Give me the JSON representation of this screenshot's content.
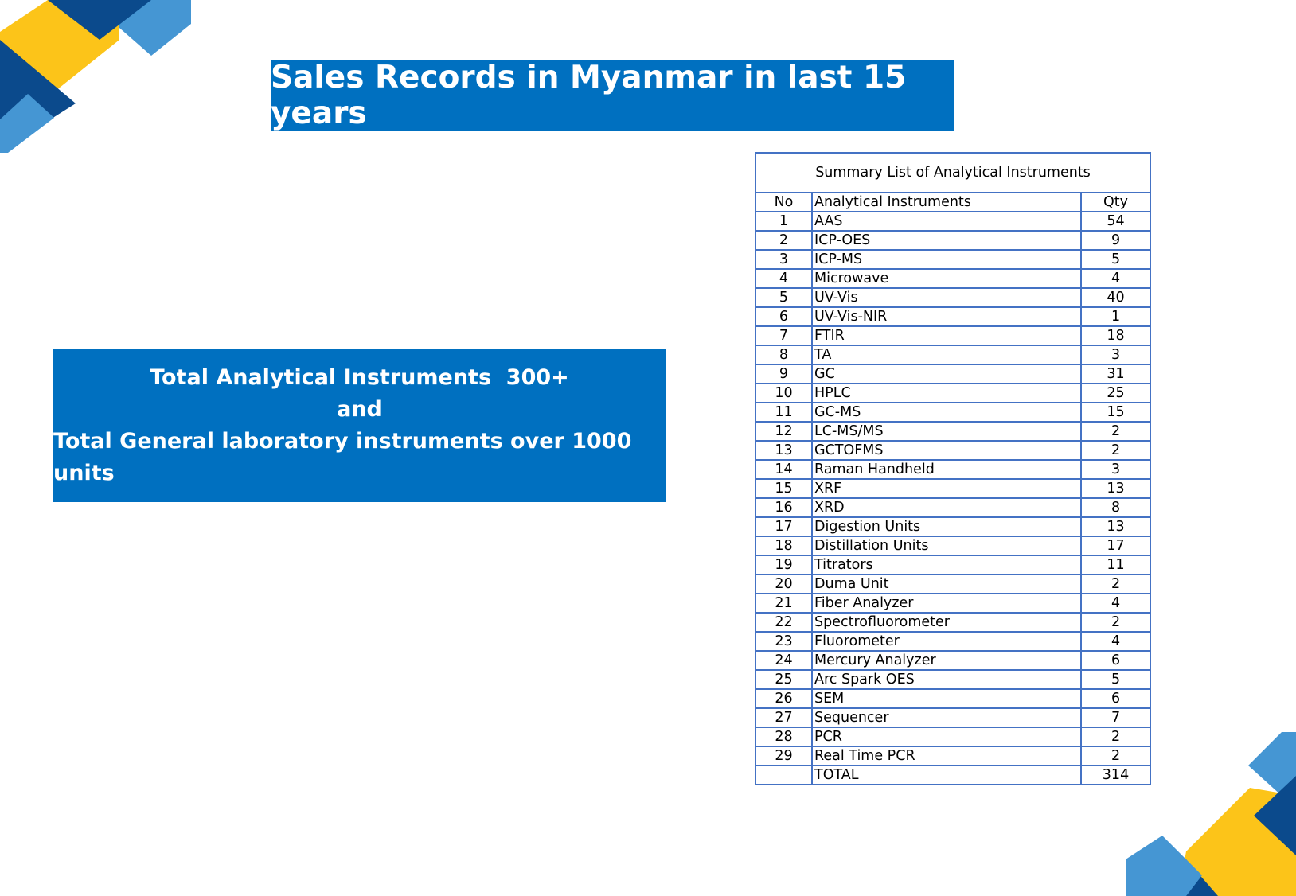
{
  "header": {
    "title": "Sales Records in Myanmar in last 15 years"
  },
  "summary": {
    "lines": [
      "Total Analytical Instruments  300+",
      "and",
      "Total General laboratory instruments over 1000 units"
    ]
  },
  "table": {
    "caption": "Summary List of Analytical Instruments",
    "columns": [
      "No",
      "Analytical Instruments",
      "Qty"
    ],
    "rows": [
      [
        1,
        "AAS",
        54
      ],
      [
        2,
        "ICP-OES",
        9
      ],
      [
        3,
        "ICP-MS",
        5
      ],
      [
        4,
        "Microwave",
        4
      ],
      [
        5,
        "UV-Vis",
        40
      ],
      [
        6,
        "UV-Vis-NIR",
        1
      ],
      [
        7,
        "FTIR",
        18
      ],
      [
        8,
        "TA",
        3
      ],
      [
        9,
        "GC",
        31
      ],
      [
        10,
        "HPLC",
        25
      ],
      [
        11,
        "GC-MS",
        15
      ],
      [
        12,
        "LC-MS/MS",
        2
      ],
      [
        13,
        "GCTOFMS",
        2
      ],
      [
        14,
        "Raman Handheld",
        3
      ],
      [
        15,
        "XRF",
        13
      ],
      [
        16,
        "XRD",
        8
      ],
      [
        17,
        "Digestion Units",
        13
      ],
      [
        18,
        "Distillation Units",
        17
      ],
      [
        19,
        "Titrators",
        11
      ],
      [
        20,
        "Duma Unit",
        2
      ],
      [
        21,
        "Fiber Analyzer",
        4
      ],
      [
        22,
        "Spectrofluorometer",
        2
      ],
      [
        23,
        "Fluorometer",
        4
      ],
      [
        24,
        "Mercury Analyzer",
        6
      ],
      [
        25,
        "Arc Spark OES",
        5
      ],
      [
        26,
        "SEM",
        6
      ],
      [
        27,
        "Sequencer",
        7
      ],
      [
        28,
        "PCR",
        2
      ],
      [
        29,
        "Real Time PCR",
        2
      ]
    ],
    "total": {
      "label": "TOTAL",
      "qty": 314
    }
  }
}
